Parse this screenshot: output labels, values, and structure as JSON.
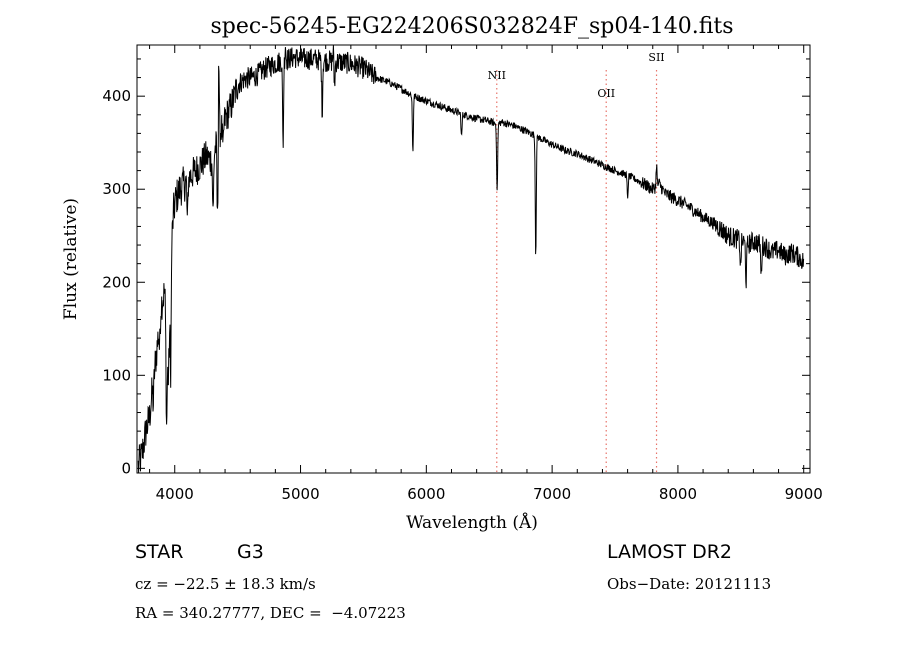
{
  "chart_data": {
    "type": "line",
    "title": "spec-56245-EG224206S032824F_sp04-140.fits",
    "xlabel": "Wavelength (Å)",
    "ylabel": "Flux (relative)",
    "xlim": [
      3700,
      9050
    ],
    "ylim": [
      -5,
      455
    ],
    "xticks": [
      4000,
      5000,
      6000,
      7000,
      8000,
      9000
    ],
    "yticks": [
      0,
      100,
      200,
      300,
      400
    ],
    "grid": false,
    "line_color": "#000000",
    "marker_color": "#e8756b",
    "series": [
      {
        "x": [
          3710,
          3740,
          3770,
          3800,
          3830,
          3860,
          3890,
          3920,
          3950,
          3970,
          3990,
          4010,
          4040,
          4070,
          4100,
          4150,
          4200,
          4250,
          4300,
          4340,
          4400,
          4450,
          4500,
          4550,
          4600,
          4650,
          4700,
          4750,
          4800,
          4850,
          4900,
          4950,
          5000,
          5100,
          5200,
          5300,
          5400,
          5500,
          5600,
          5700,
          5800,
          5900,
          6000,
          6100,
          6200,
          6300,
          6400,
          6500,
          6560,
          6600,
          6700,
          6800,
          6860,
          6900,
          7000,
          7100,
          7200,
          7300,
          7400,
          7500,
          7600,
          7700,
          7800,
          7850,
          7900,
          8000,
          8100,
          8200,
          8300,
          8400,
          8500,
          8550,
          8600,
          8700,
          8750,
          8800,
          8850,
          8900,
          8950,
          9000
        ],
        "y": [
          2,
          15,
          40,
          55,
          95,
          130,
          175,
          190,
          90,
          230,
          275,
          290,
          300,
          305,
          310,
          318,
          325,
          335,
          330,
          355,
          375,
          390,
          412,
          418,
          420,
          422,
          428,
          432,
          435,
          438,
          440,
          442,
          440,
          440,
          438,
          437,
          435,
          430,
          420,
          415,
          408,
          400,
          395,
          390,
          385,
          380,
          376,
          373,
          370,
          372,
          368,
          362,
          358,
          355,
          348,
          342,
          338,
          332,
          326,
          320,
          315,
          308,
          300,
          306,
          295,
          288,
          280,
          270,
          262,
          250,
          245,
          240,
          244,
          238,
          232,
          235,
          228,
          232,
          228,
          222
        ]
      }
    ],
    "absorption_lines": [
      {
        "x": 3830,
        "depth": 25
      },
      {
        "x": 3880,
        "depth": 30
      },
      {
        "x": 3935,
        "depth": 95
      },
      {
        "x": 3968,
        "depth": 110
      },
      {
        "x": 4101,
        "depth": 45
      },
      {
        "x": 4305,
        "depth": 60
      },
      {
        "x": 4340,
        "depth": 90
      },
      {
        "x": 4384,
        "depth": 30
      },
      {
        "x": 4861,
        "depth": 90
      },
      {
        "x": 5172,
        "depth": 55
      },
      {
        "x": 5270,
        "depth": 25
      },
      {
        "x": 5893,
        "depth": 60
      },
      {
        "x": 6280,
        "depth": 25
      },
      {
        "x": 6563,
        "depth": 75
      },
      {
        "x": 6870,
        "depth": 130
      },
      {
        "x": 7600,
        "depth": 25
      },
      {
        "x": 8498,
        "depth": 30
      },
      {
        "x": 8542,
        "depth": 40
      },
      {
        "x": 8662,
        "depth": 35
      }
    ],
    "emission_spikes": [
      {
        "x": 4350,
        "height": 90
      },
      {
        "x": 4880,
        "height": 18
      },
      {
        "x": 5260,
        "height": 15
      },
      {
        "x": 7830,
        "height": 25
      }
    ],
    "markers": [
      {
        "label": "NII",
        "x": 6560
      },
      {
        "label": "OII",
        "x": 7430
      },
      {
        "label": "SII",
        "x": 7830
      }
    ]
  },
  "info": {
    "object_class": "STAR",
    "subclass": "G3",
    "survey": "LAMOST DR2",
    "cz": "cz = −22.5 ± 18.3 km/s",
    "obs_date": "Obs−Date: 20121113",
    "coords": "RA = 340.27777, DEC =  −4.07223"
  }
}
